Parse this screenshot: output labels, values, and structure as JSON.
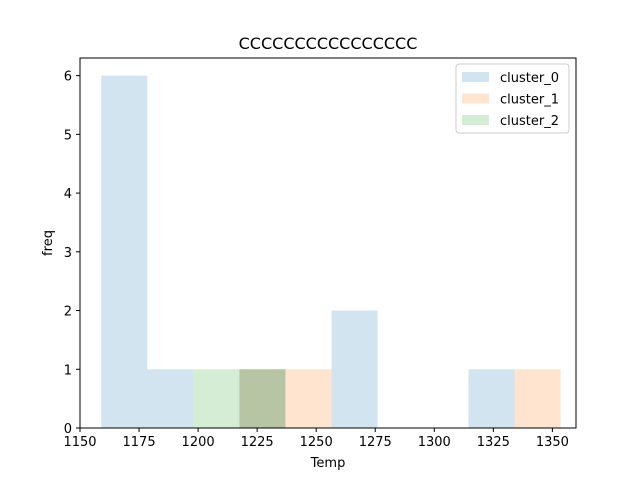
{
  "chart_data": {
    "type": "bar",
    "title": "CCCCCCCCCCCCCCCC",
    "xlabel": "Temp",
    "ylabel": "freq",
    "xlim": [
      1150,
      1360
    ],
    "ylim": [
      0,
      6.3
    ],
    "xticks": [
      1150,
      1175,
      1200,
      1225,
      1250,
      1275,
      1300,
      1325,
      1350
    ],
    "yticks": [
      0,
      1,
      2,
      3,
      4,
      5,
      6
    ],
    "grid": false,
    "legend_position": "top-right",
    "series": [
      {
        "name": "cluster_0",
        "color": "#1f77b4",
        "bins": [
          {
            "x0": 1159,
            "x1": 1178.5,
            "count": 6
          },
          {
            "x0": 1178.5,
            "x1": 1198,
            "count": 1
          },
          {
            "x0": 1217.5,
            "x1": 1237,
            "count": 1
          },
          {
            "x0": 1256.5,
            "x1": 1276,
            "count": 2
          },
          {
            "x0": 1314.5,
            "x1": 1334,
            "count": 1
          }
        ]
      },
      {
        "name": "cluster_1",
        "color": "#ff7f0e",
        "bins": [
          {
            "x0": 1217.5,
            "x1": 1237,
            "count": 1
          },
          {
            "x0": 1237,
            "x1": 1256.5,
            "count": 1
          },
          {
            "x0": 1334,
            "x1": 1353.5,
            "count": 1
          }
        ]
      },
      {
        "name": "cluster_2",
        "color": "#2ca02c",
        "bins": [
          {
            "x0": 1198,
            "x1": 1217.5,
            "count": 1
          },
          {
            "x0": 1217.5,
            "x1": 1237,
            "count": 1
          }
        ]
      }
    ]
  }
}
